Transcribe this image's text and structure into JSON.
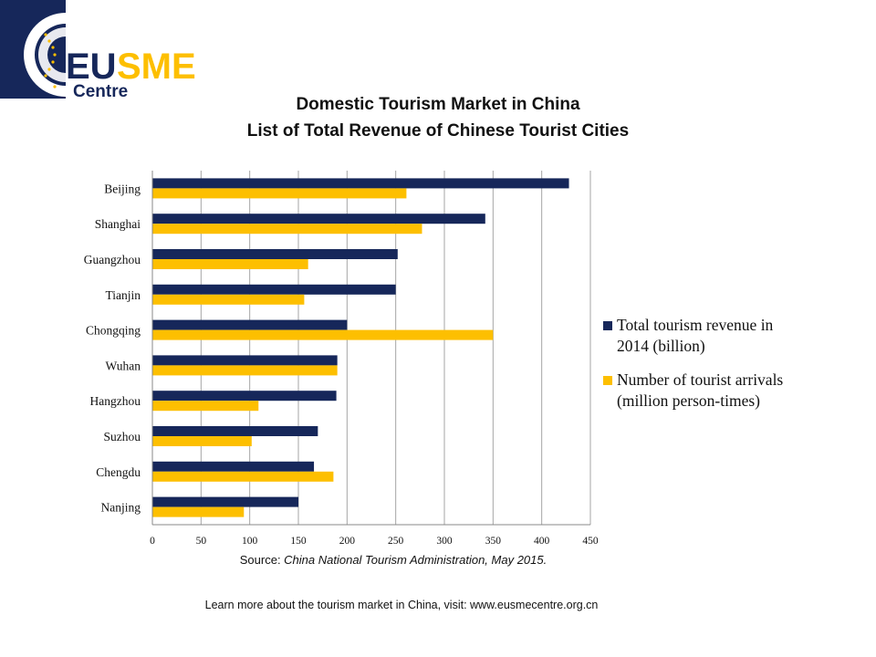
{
  "logo": {
    "brand": "EUSME",
    "sub": "Centre"
  },
  "header": {
    "title_line1": "Domestic Tourism Market in China",
    "title_line2": "List of Total Revenue of Chinese Tourist Cities"
  },
  "chart_data": {
    "type": "bar",
    "orientation": "horizontal",
    "categories": [
      "Beijing",
      "Shanghai",
      "Guangzhou",
      "Tianjin",
      "Chongqing",
      "Wuhan",
      "Hangzhou",
      "Suzhou",
      "Chengdu",
      "Nanjing"
    ],
    "series": [
      {
        "name": "Total tourism revenue in 2014 (billion)",
        "color": "#16275a",
        "values": [
          428,
          342,
          252,
          250,
          200,
          190,
          189,
          170,
          166,
          150
        ]
      },
      {
        "name": "Number of tourist arrivals (million person-times)",
        "color": "#fdbf00",
        "values": [
          261,
          277,
          160,
          156,
          350,
          190,
          109,
          102,
          186,
          94
        ]
      }
    ],
    "xlim": [
      0,
      450
    ],
    "xticks": [
      0,
      50,
      100,
      150,
      200,
      250,
      300,
      350,
      400,
      450
    ],
    "grid": true,
    "legend_placement": "right"
  },
  "legend": {
    "item1_line1": "Total tourism revenue in",
    "item1_line2": "2014 (billion)",
    "item2_line1": "Number of tourist arrivals",
    "item2_line2": "(million person-times)"
  },
  "source": {
    "label": "Source: ",
    "text": "China National Tourism Administration, May 2015."
  },
  "footer": {
    "text": "Learn more about the tourism market in China, visit: www.eusmecentre.org.cn"
  }
}
